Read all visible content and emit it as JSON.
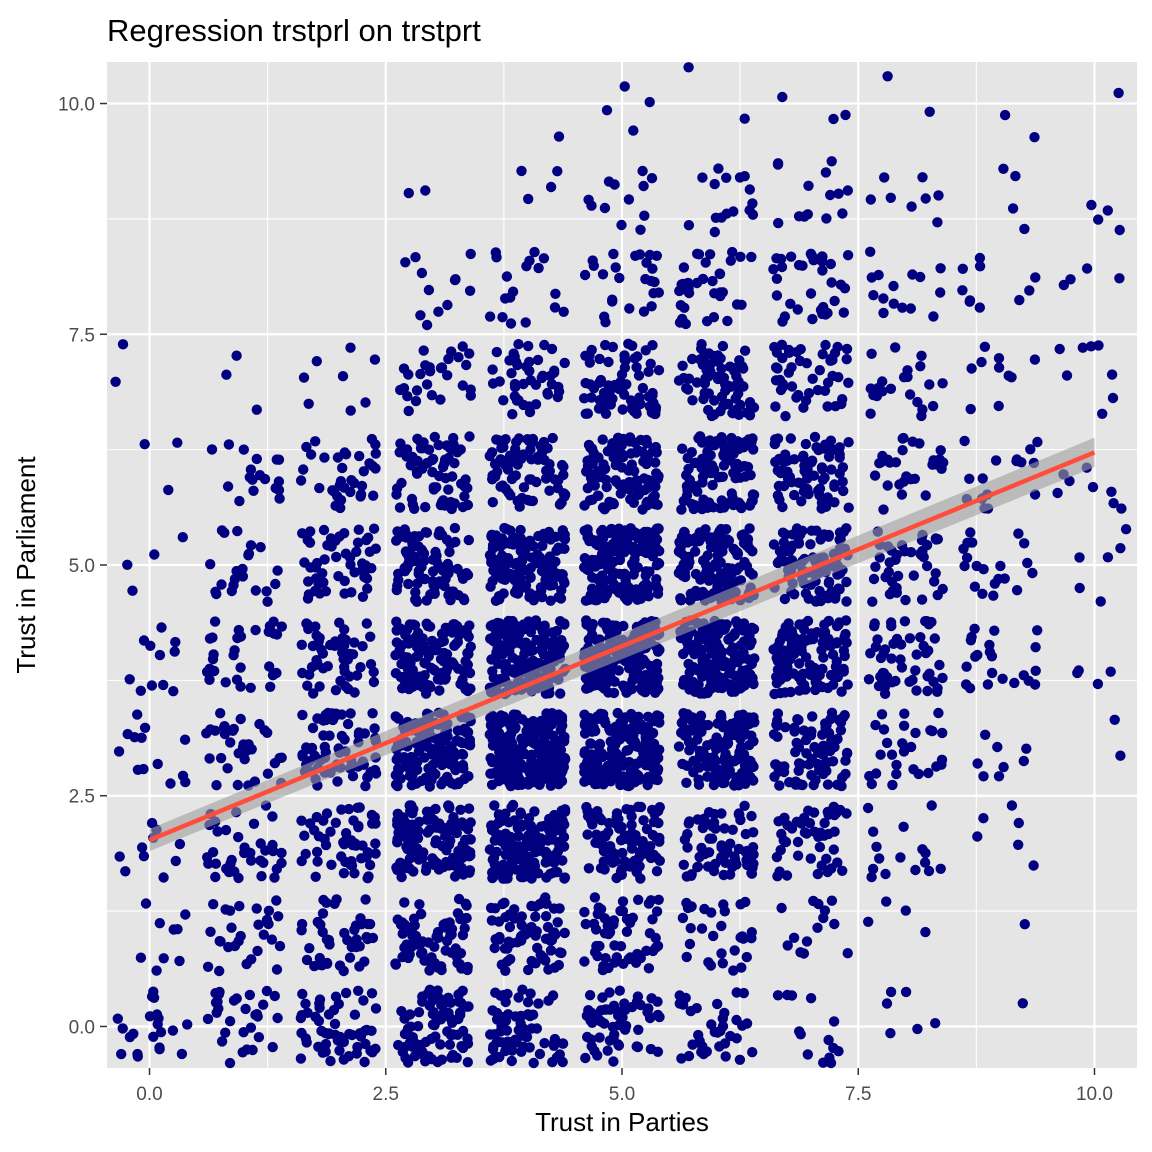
{
  "chart_data": {
    "type": "scatter",
    "title": "Regression trstprl on trstprt",
    "xlabel": "Trust in Parties",
    "ylabel": "Trust in Parliament",
    "xlim": [
      -0.45,
      10.45
    ],
    "ylim": [
      -0.45,
      10.45
    ],
    "x_ticks": [
      0,
      2.5,
      5,
      7.5,
      10
    ],
    "y_ticks": [
      0,
      2.5,
      5,
      7.5,
      10
    ],
    "x_tick_labels": [
      "0.0",
      "2.5",
      "5.0",
      "7.5",
      "10.0"
    ],
    "y_tick_labels": [
      "0.0",
      "2.5",
      "5.0",
      "7.5",
      "10.0"
    ],
    "grid": true,
    "jitter": 0.4,
    "point_color": "#000080",
    "panel_background": "#e5e5e5",
    "grid_color": "#ffffff",
    "regression": {
      "color": "#ff4d3a",
      "band_color": "#9e9e9e",
      "x": [
        0,
        10
      ],
      "y": [
        2.02,
        6.22
      ],
      "ci_halfwidth": [
        0.12,
        0.16
      ]
    },
    "cell_counts": [
      {
        "x": 0,
        "y": [
          22,
          9,
          10,
          13,
          11,
          4,
          3,
          2,
          0,
          0,
          0
        ]
      },
      {
        "x": 1,
        "y": [
          30,
          28,
          36,
          33,
          30,
          22,
          18,
          3,
          0,
          0,
          0
        ]
      },
      {
        "x": 2,
        "y": [
          55,
          42,
          54,
          70,
          55,
          52,
          35,
          8,
          0,
          0,
          0
        ]
      },
      {
        "x": 3,
        "y": [
          80,
          72,
          130,
          150,
          125,
          90,
          65,
          28,
          12,
          2,
          0
        ]
      },
      {
        "x": 4,
        "y": [
          70,
          68,
          150,
          235,
          195,
          140,
          80,
          45,
          18,
          4,
          1
        ]
      },
      {
        "x": 5,
        "y": [
          60,
          55,
          95,
          190,
          195,
          175,
          115,
          70,
          25,
          12,
          4
        ]
      },
      {
        "x": 6,
        "y": [
          35,
          30,
          70,
          140,
          175,
          145,
          110,
          70,
          35,
          16,
          2
        ]
      },
      {
        "x": 7,
        "y": [
          14,
          14,
          48,
          82,
          115,
          98,
          78,
          48,
          35,
          14,
          3
        ]
      },
      {
        "x": 8,
        "y": [
          6,
          4,
          16,
          28,
          52,
          40,
          30,
          22,
          15,
          8,
          2
        ]
      },
      {
        "x": 9,
        "y": [
          1,
          1,
          6,
          8,
          22,
          20,
          16,
          10,
          10,
          4,
          2
        ]
      },
      {
        "x": 10,
        "y": [
          0,
          0,
          0,
          2,
          4,
          6,
          8,
          8,
          4,
          4,
          1
        ]
      }
    ]
  }
}
